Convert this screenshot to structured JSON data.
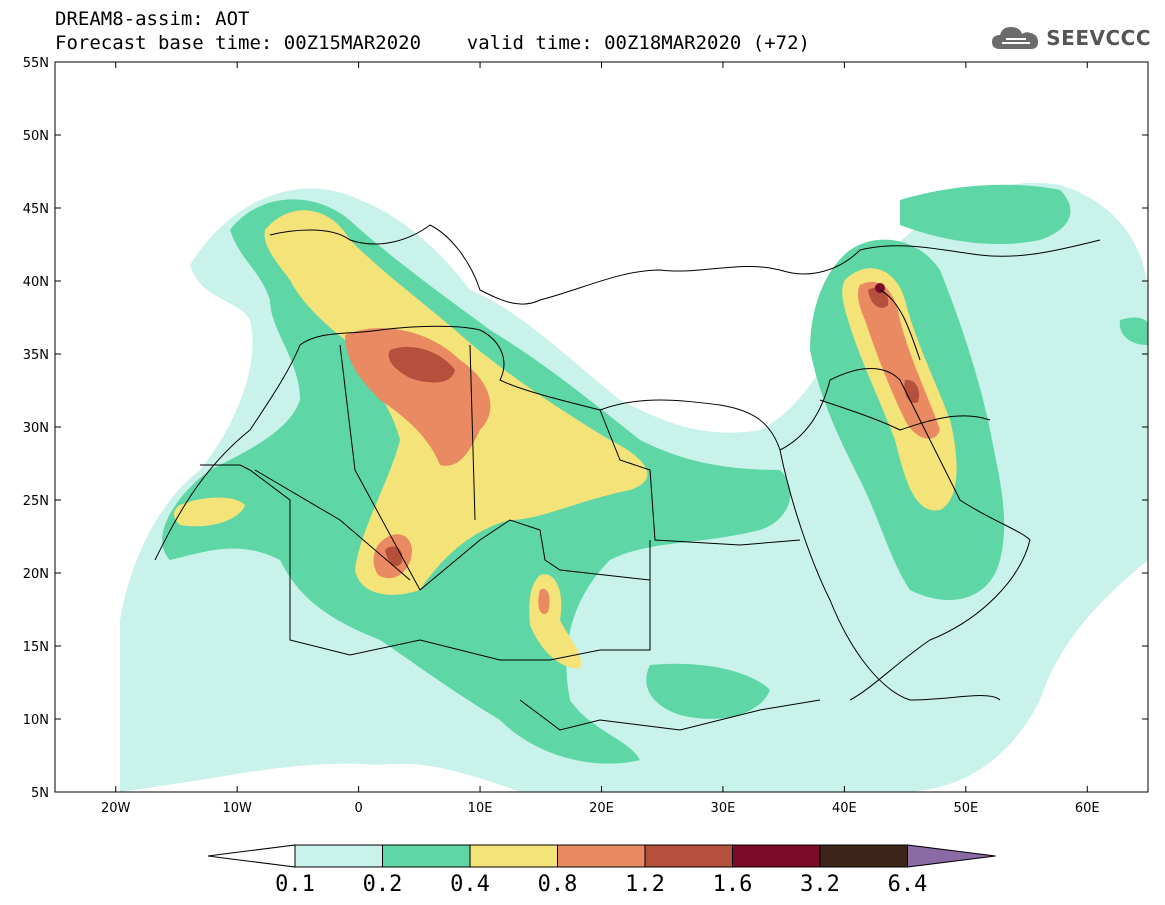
{
  "header": {
    "line1": "DREAM8-assim: AOT",
    "line2": "Forecast base time: 00Z15MAR2020    valid time: 00Z18MAR2020 (+72)"
  },
  "logo": {
    "text": "SEEVCCC",
    "icon": "cloud-logo-icon"
  },
  "map": {
    "lon_range": [
      -25,
      65
    ],
    "lat_range": [
      5,
      55
    ],
    "lon_ticks": [
      "20W",
      "10W",
      "0",
      "10E",
      "20E",
      "30E",
      "40E",
      "50E",
      "60E"
    ],
    "lat_ticks": [
      "55N",
      "50N",
      "45N",
      "40N",
      "35N",
      "30N",
      "25N",
      "20N",
      "15N",
      "10N",
      "5N"
    ]
  },
  "colorbar": {
    "levels": [
      "0.1",
      "0.2",
      "0.4",
      "0.8",
      "1.2",
      "1.6",
      "3.2",
      "6.4"
    ],
    "colors": [
      "#c8f2ea",
      "#5ed6a6",
      "#f4e378",
      "#e98a62",
      "#b5503c",
      "#7e0a2a",
      "#3c2418",
      "#8a6aa2"
    ],
    "under_color": "#ffffff",
    "over_color": "#8a6aa2"
  }
}
